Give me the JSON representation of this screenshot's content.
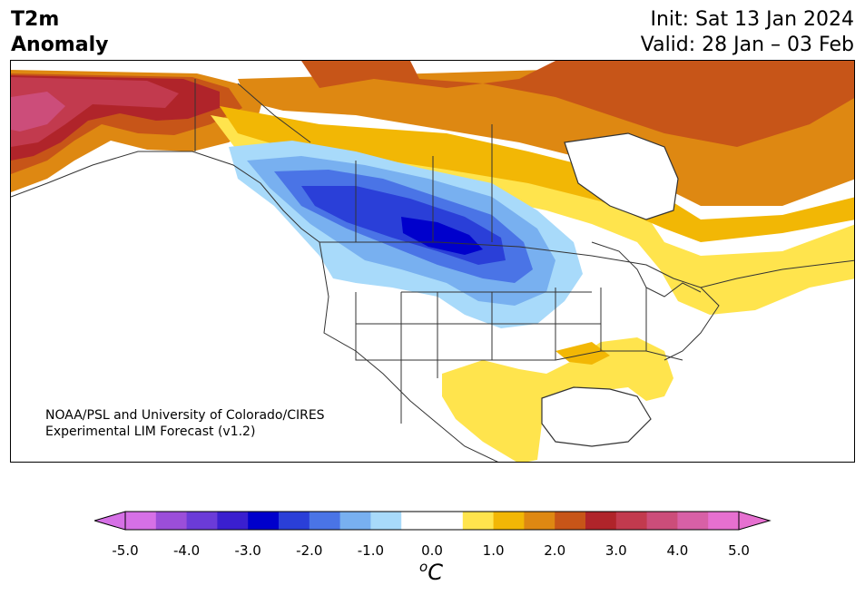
{
  "header": {
    "title_line1": "T2m",
    "title_line2": "Anomaly",
    "init": "Init: Sat 13 Jan 2024",
    "valid": "Valid: 28 Jan – 03 Feb"
  },
  "credit": {
    "line1": "NOAA/PSL and University of Colorado/CIRES",
    "line2": "Experimental LIM Forecast (v1.2)"
  },
  "colorbar": {
    "unit_base": "C",
    "unit_sup": "o",
    "ticks": [
      "-5.0",
      "-4.0",
      "-3.0",
      "-2.0",
      "-1.0",
      "0.0",
      "1.0",
      "2.0",
      "3.0",
      "4.0",
      "5.0"
    ],
    "colors": [
      "#d670e6",
      "#9b4ed9",
      "#6b3bd8",
      "#3a1fcf",
      "#0000cc",
      "#2a3fd8",
      "#4a74e6",
      "#78b0f0",
      "#a8dafa",
      "#ffffff",
      "#ffffff",
      "#ffe44d",
      "#f2b705",
      "#de8812",
      "#c75518",
      "#b0242a",
      "#c23a4e",
      "#cc4d7a",
      "#d860a6",
      "#e670d0"
    ],
    "under_color": "#d670e6",
    "over_color": "#e670d0"
  },
  "map": {
    "land_outline_color": "#333333",
    "water_color": "#ffffff"
  }
}
